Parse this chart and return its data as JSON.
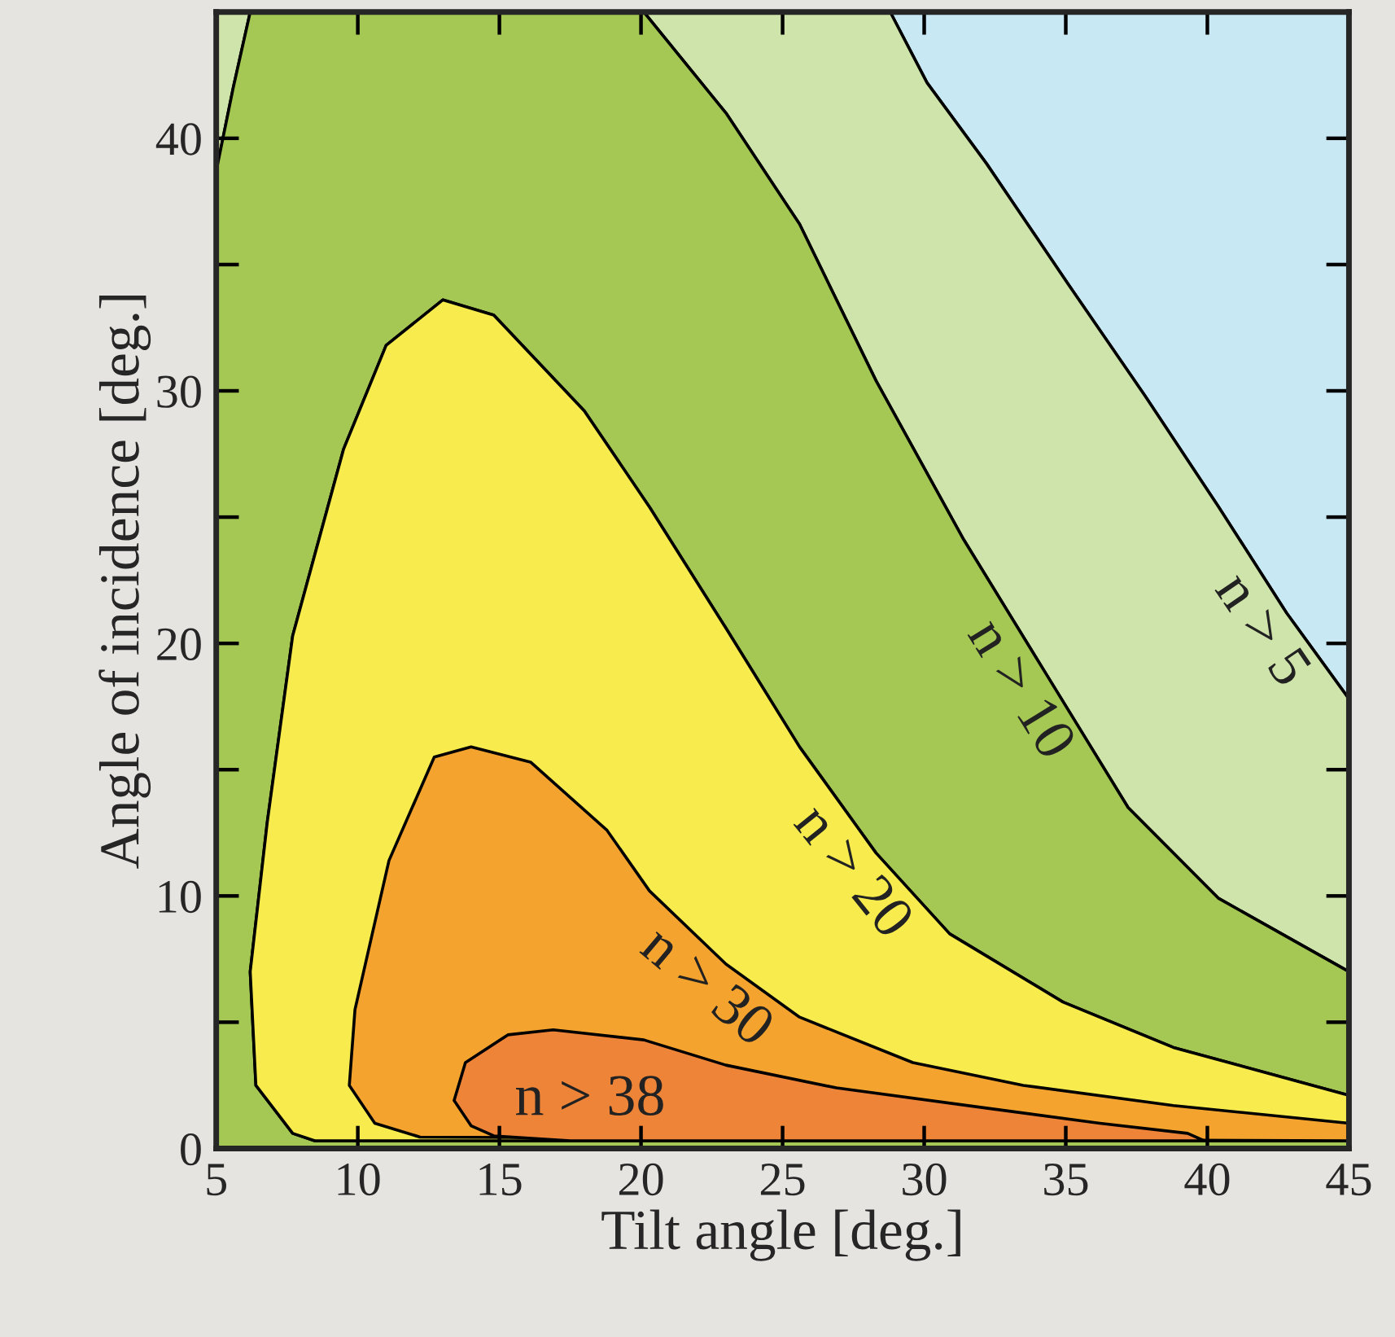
{
  "chart_data": {
    "type": "area",
    "xlabel": "Tilt angle [deg.]",
    "ylabel": "Angle of incidence [deg.]",
    "xlim": [
      5,
      45
    ],
    "ylim": [
      0,
      45
    ],
    "xticks": [
      5,
      10,
      15,
      20,
      25,
      30,
      35,
      40,
      45
    ],
    "yticks": [
      0,
      {
        "value": 5,
        "label": null
      },
      10,
      {
        "value": 15,
        "label": null
      },
      20,
      {
        "value": 25,
        "label": null
      },
      30,
      {
        "value": 35,
        "label": null
      },
      40,
      {
        "value": 45,
        "label": null
      }
    ],
    "series": [
      {
        "color": "#c8e8f4",
        "x": [
          28.8,
          30.1,
          32.2,
          35.1,
          37.8,
          40.4,
          42.8,
          45,
          45
        ],
        "values": [
          45,
          42.2,
          39.0,
          34.2,
          29.8,
          25.4,
          21.2,
          17.8,
          45
        ]
      },
      {
        "name": "n > 5",
        "color": "#cfe4aa",
        "x": [
          28.8,
          30.1,
          32.2,
          35.1,
          37.8,
          40.4,
          42.8,
          45,
          45,
          40.4,
          37.2,
          34.3,
          31.4,
          28.3,
          25.6,
          23.0,
          20.1,
          6.2,
          5.6,
          5,
          5
        ],
        "values": [
          45,
          42.2,
          39.0,
          34.2,
          29.8,
          25.4,
          21.2,
          17.8,
          7.0,
          9.9,
          13.5,
          18.8,
          24.1,
          30.4,
          36.6,
          41.0,
          45,
          45,
          42,
          38.7,
          45
        ]
      },
      {
        "name": "n > 10",
        "color": "#a5c854",
        "x": [
          5,
          5,
          5.6,
          6.2,
          20.1,
          23.0,
          25.6,
          28.3,
          31.4,
          34.3,
          37.2,
          40.4,
          45,
          45,
          38.8,
          34.9,
          30.9,
          28.3,
          25.6,
          23.0,
          20.3,
          18.0,
          14.8,
          13.0,
          11.0,
          9.5,
          7.7,
          6.8,
          6.2,
          6.4,
          7.7,
          8.5,
          45,
          45
        ],
        "values": [
          0,
          38.7,
          42,
          45,
          45,
          41.0,
          36.6,
          30.4,
          24.1,
          18.8,
          13.5,
          9.9,
          7.0,
          2.1,
          4.0,
          5.8,
          8.5,
          11.7,
          15.9,
          20.6,
          25.4,
          29.2,
          33.0,
          33.6,
          31.8,
          27.7,
          20.3,
          12.9,
          7.0,
          2.5,
          0.6,
          0.3,
          0.3,
          0
        ]
      },
      {
        "name": "n > 20",
        "color": "#f7eb4d",
        "x": [
          8.5,
          7.7,
          6.4,
          6.2,
          6.8,
          7.7,
          9.5,
          11.0,
          13.0,
          14.8,
          18.0,
          20.3,
          23.0,
          25.6,
          28.3,
          30.9,
          34.9,
          38.8,
          45,
          45
        ],
        "values": [
          0.3,
          0.6,
          2.5,
          7.0,
          12.9,
          20.3,
          27.7,
          31.8,
          33.6,
          33.0,
          29.2,
          25.4,
          20.6,
          15.9,
          11.7,
          8.5,
          5.8,
          4.0,
          2.1,
          0.3
        ]
      },
      {
        "name": "n > 30",
        "color": "#f4a42e",
        "x": [
          12.2,
          10.6,
          9.7,
          9.9,
          11.1,
          12.7,
          14.0,
          16.1,
          18.8,
          20.3,
          23.0,
          25.6,
          29.6,
          33.5,
          38.8,
          45,
          45
        ],
        "values": [
          0.45,
          1.0,
          2.5,
          5.5,
          11.4,
          15.5,
          15.9,
          15.3,
          12.6,
          10.2,
          7.3,
          5.2,
          3.4,
          2.5,
          1.7,
          1.0,
          0.3
        ]
      },
      {
        "name": "n > 38",
        "color": "#ed8438",
        "x": [
          17.5,
          14.8,
          14.0,
          13.4,
          13.8,
          15.3,
          16.9,
          20.1,
          23.0,
          26.9,
          32.2,
          36.2,
          39.3,
          39.9
        ],
        "values": [
          0.3,
          0.5,
          0.9,
          1.9,
          3.4,
          4.5,
          4.7,
          4.3,
          3.3,
          2.4,
          1.6,
          1.0,
          0.6,
          0.3
        ]
      }
    ]
  }
}
